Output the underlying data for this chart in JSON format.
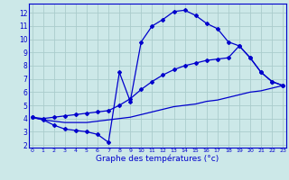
{
  "xlabel": "Graphe des températures (°c)",
  "bg_color": "#cce8e8",
  "grid_color": "#aacccc",
  "line_color": "#0000cc",
  "hours": [
    0,
    1,
    2,
    3,
    4,
    5,
    6,
    7,
    8,
    9,
    10,
    11,
    12,
    13,
    14,
    15,
    16,
    17,
    18,
    19,
    20,
    21,
    22,
    23
  ],
  "temp_actual": [
    4.1,
    3.9,
    3.5,
    3.2,
    3.1,
    3.0,
    2.8,
    2.2,
    7.5,
    5.3,
    9.8,
    11.0,
    11.5,
    12.1,
    12.2,
    11.8,
    11.2,
    10.8,
    9.8,
    9.5,
    8.6,
    7.5,
    6.8,
    6.5
  ],
  "temp_upper": [
    4.1,
    4.0,
    4.1,
    4.2,
    4.3,
    4.4,
    4.5,
    4.6,
    5.0,
    5.5,
    6.2,
    6.8,
    7.3,
    7.7,
    8.0,
    8.2,
    8.4,
    8.5,
    8.6,
    9.5,
    8.6,
    7.5,
    6.8,
    6.5
  ],
  "temp_lower": [
    4.1,
    3.9,
    3.8,
    3.7,
    3.7,
    3.7,
    3.8,
    3.9,
    4.0,
    4.1,
    4.3,
    4.5,
    4.7,
    4.9,
    5.0,
    5.1,
    5.3,
    5.4,
    5.6,
    5.8,
    6.0,
    6.1,
    6.3,
    6.5
  ],
  "ylim": [
    1.8,
    12.7
  ],
  "xlim": [
    -0.3,
    23.3
  ],
  "yticks": [
    2,
    3,
    4,
    5,
    6,
    7,
    8,
    9,
    10,
    11,
    12
  ],
  "xticks": [
    0,
    1,
    2,
    3,
    4,
    5,
    6,
    7,
    8,
    9,
    10,
    11,
    12,
    13,
    14,
    15,
    16,
    17,
    18,
    19,
    20,
    21,
    22,
    23
  ]
}
